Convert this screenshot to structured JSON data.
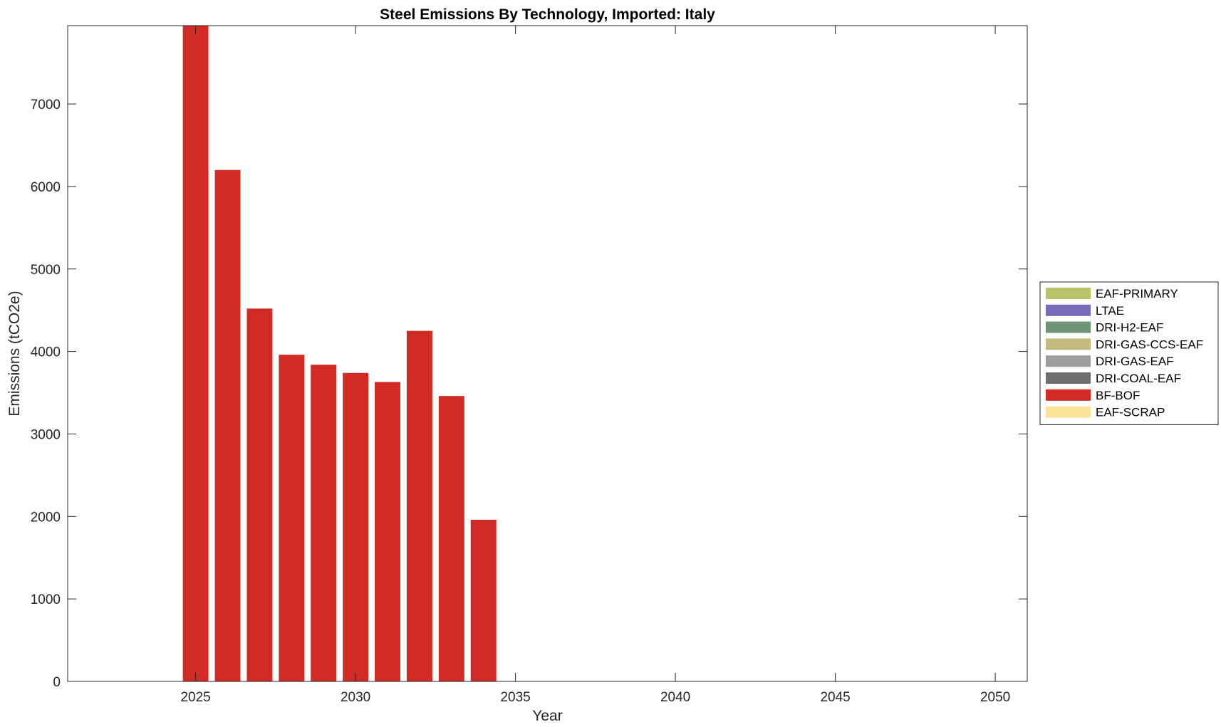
{
  "chart_data": {
    "type": "bar",
    "stacked": true,
    "title": "Steel Emissions By Technology, Imported: Italy",
    "xlabel": "Year",
    "ylabel": "Emissions (tCO2e)",
    "xlim": [
      2021,
      2051
    ],
    "ylim": [
      0,
      7950
    ],
    "x_ticks": [
      2025,
      2030,
      2035,
      2040,
      2045,
      2050
    ],
    "y_ticks": [
      0,
      1000,
      2000,
      3000,
      4000,
      5000,
      6000,
      7000
    ],
    "grid": false,
    "legend_position": "right",
    "categories": [
      2025,
      2026,
      2027,
      2028,
      2029,
      2030,
      2031,
      2032,
      2033,
      2034,
      2035,
      2036,
      2037,
      2038,
      2039,
      2040,
      2041,
      2042,
      2043,
      2044,
      2045,
      2046,
      2047,
      2048,
      2049,
      2050
    ],
    "series": [
      {
        "name": "EAF-PRIMARY",
        "color": "#b8c36a",
        "values": [
          0,
          0,
          0,
          0,
          0,
          0,
          0,
          0,
          0,
          0,
          0,
          0,
          0,
          0,
          0,
          0,
          0,
          0,
          0,
          0,
          0,
          0,
          0,
          0,
          0,
          0
        ]
      },
      {
        "name": "LTAE",
        "color": "#766cb8",
        "values": [
          0,
          0,
          0,
          0,
          0,
          0,
          0,
          0,
          0,
          0,
          0,
          0,
          0,
          0,
          0,
          0,
          0,
          0,
          0,
          0,
          0,
          0,
          0,
          0,
          0,
          0
        ]
      },
      {
        "name": "DRI-H2-EAF",
        "color": "#6e9676",
        "values": [
          0,
          0,
          0,
          0,
          0,
          0,
          0,
          0,
          0,
          0,
          0,
          0,
          0,
          0,
          0,
          0,
          0,
          0,
          0,
          0,
          0,
          0,
          0,
          0,
          0,
          0
        ]
      },
      {
        "name": "DRI-GAS-CCS-EAF",
        "color": "#c6bb7e",
        "values": [
          0,
          0,
          0,
          0,
          0,
          0,
          0,
          0,
          0,
          0,
          0,
          0,
          0,
          0,
          0,
          0,
          0,
          0,
          0,
          0,
          0,
          0,
          0,
          0,
          0,
          0
        ]
      },
      {
        "name": "DRI-GAS-EAF",
        "color": "#9e9e9e",
        "values": [
          0,
          0,
          0,
          0,
          0,
          0,
          0,
          0,
          0,
          0,
          0,
          0,
          0,
          0,
          0,
          0,
          0,
          0,
          0,
          0,
          0,
          0,
          0,
          0,
          0,
          0
        ]
      },
      {
        "name": "DRI-COAL-EAF",
        "color": "#6e6e6e",
        "values": [
          0,
          0,
          0,
          0,
          0,
          0,
          0,
          0,
          0,
          0,
          0,
          0,
          0,
          0,
          0,
          0,
          0,
          0,
          0,
          0,
          0,
          0,
          0,
          0,
          0,
          0
        ]
      },
      {
        "name": "BF-BOF",
        "color": "#d22a25",
        "values": [
          7950,
          6200,
          4520,
          3960,
          3840,
          3740,
          3630,
          4250,
          3460,
          1960,
          0,
          0,
          0,
          0,
          0,
          0,
          0,
          0,
          0,
          0,
          0,
          0,
          0,
          0,
          0,
          0
        ]
      },
      {
        "name": "EAF-SCRAP",
        "color": "#fbe39a",
        "values": [
          0,
          0,
          0,
          0,
          0,
          0,
          0,
          0,
          0,
          0,
          0,
          0,
          0,
          0,
          0,
          0,
          0,
          0,
          0,
          0,
          0,
          0,
          0,
          0,
          0,
          0
        ]
      }
    ]
  }
}
